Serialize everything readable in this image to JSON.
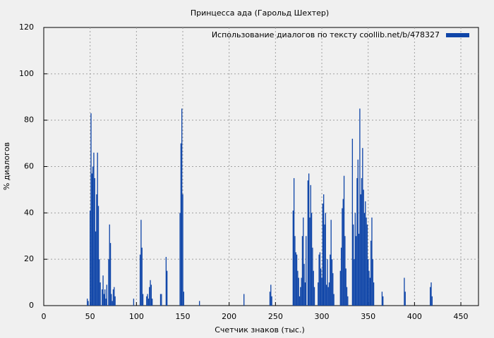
{
  "chart_data": {
    "type": "bar",
    "title": "Принцесса ада (Гарольд Шехтер)",
    "x_label": "Счетчик знаков (тыс.)",
    "y_label": "% диалогов",
    "legend_position": "upper right",
    "grid": true,
    "xlim": [
      0,
      469
    ],
    "ylim": [
      0,
      120
    ],
    "xticks": [
      0,
      50,
      100,
      150,
      200,
      250,
      300,
      350,
      400,
      450
    ],
    "yticks": [
      0,
      20,
      40,
      60,
      80,
      100,
      120
    ],
    "series": [
      {
        "name": "Использование диалогов по тексту  coollib.net/b/478327",
        "color": "#0f45a8",
        "x": [
          47,
          48,
          50,
          51,
          52,
          53,
          54,
          55,
          56,
          57,
          58,
          59,
          60,
          61,
          63,
          64,
          65,
          66,
          67,
          68,
          70,
          71,
          72,
          73,
          74,
          75,
          76,
          77,
          97,
          104,
          105,
          106,
          107,
          111,
          112,
          113,
          114,
          115,
          116,
          117,
          126,
          127,
          132,
          133,
          147,
          148,
          149,
          150,
          151,
          168,
          216,
          244,
          245,
          246,
          269,
          270,
          271,
          272,
          273,
          274,
          275,
          276,
          277,
          278,
          279,
          280,
          281,
          282,
          283,
          285,
          286,
          287,
          288,
          289,
          290,
          291,
          292,
          296,
          297,
          298,
          299,
          300,
          301,
          302,
          303,
          304,
          305,
          306,
          307,
          308,
          309,
          310,
          311,
          312,
          313,
          320,
          321,
          322,
          323,
          324,
          325,
          326,
          327,
          328,
          333,
          334,
          335,
          336,
          337,
          338,
          339,
          340,
          341,
          342,
          343,
          344,
          345,
          346,
          347,
          348,
          349,
          350,
          351,
          352,
          353,
          354,
          355,
          356,
          365,
          366,
          389,
          390,
          417,
          418,
          419
        ],
        "values": [
          3,
          2,
          41,
          83,
          57,
          60,
          66,
          55,
          32,
          48,
          66,
          43,
          20,
          10,
          7,
          13,
          5,
          7,
          3,
          9,
          20,
          35,
          27,
          5,
          2,
          7,
          8,
          4,
          3,
          22,
          37,
          25,
          5,
          4,
          5,
          3,
          8,
          11,
          9,
          3,
          5,
          5,
          21,
          15,
          40,
          70,
          85,
          48,
          6,
          2,
          5,
          6,
          9,
          4,
          41,
          55,
          30,
          23,
          22,
          15,
          12,
          4,
          8,
          12,
          30,
          38,
          18,
          10,
          30,
          54,
          57,
          38,
          52,
          40,
          25,
          15,
          8,
          10,
          22,
          23,
          16,
          12,
          44,
          48,
          35,
          40,
          9,
          20,
          8,
          10,
          22,
          37,
          20,
          14,
          5,
          15,
          25,
          42,
          46,
          56,
          30,
          16,
          8,
          4,
          72,
          35,
          20,
          40,
          30,
          55,
          63,
          31,
          85,
          48,
          55,
          68,
          50,
          40,
          45,
          38,
          35,
          20,
          15,
          12,
          28,
          38,
          20,
          10,
          6,
          4,
          12,
          6,
          8,
          10,
          4
        ]
      }
    ]
  }
}
